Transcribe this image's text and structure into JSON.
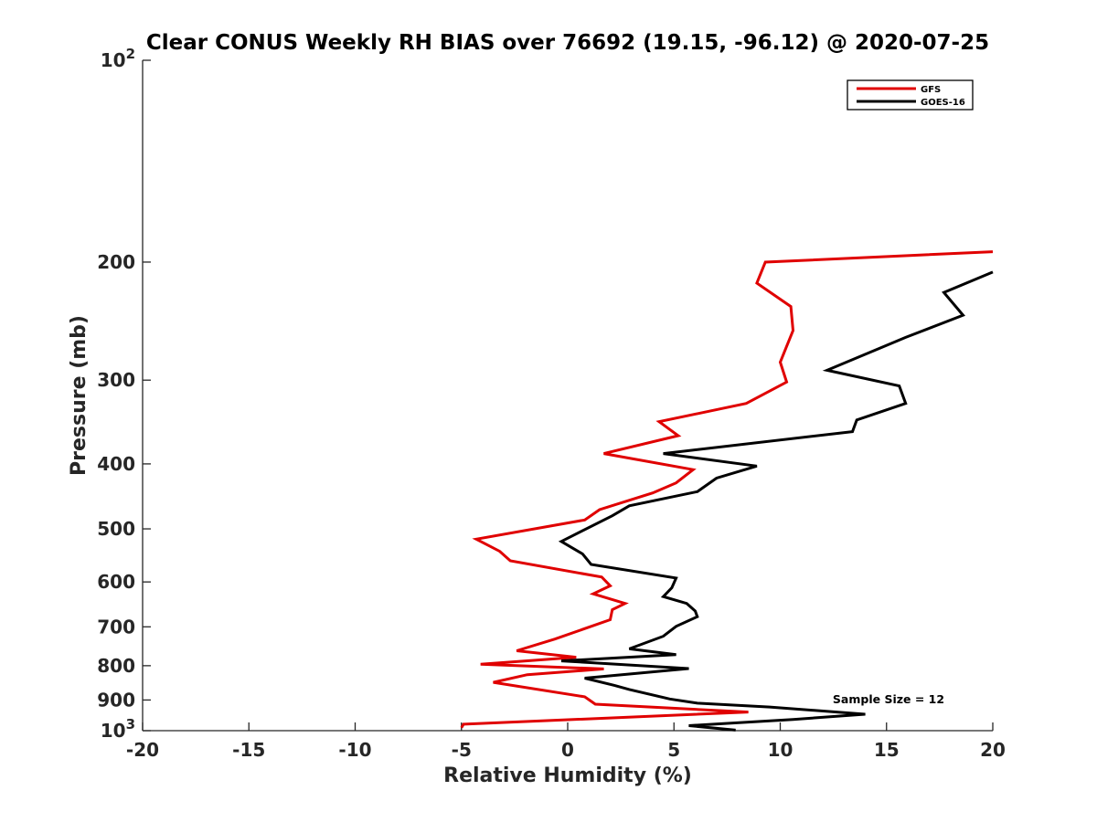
{
  "chart_data": {
    "type": "line",
    "title": "Clear CONUS Weekly RH BIAS over 76692 (19.15, -96.12) @ 2020-07-25",
    "xlabel": "Relative Humidity (%)",
    "ylabel": "Pressure (mb)",
    "xlim": [
      -20,
      20
    ],
    "ylim": [
      100,
      1000
    ],
    "yscale": "log",
    "y_reversed": true,
    "grid": false,
    "legend_position": "top-right",
    "x_ticks": [
      {
        "value": -20,
        "label": "-20"
      },
      {
        "value": -15,
        "label": "-15"
      },
      {
        "value": -10,
        "label": "-10"
      },
      {
        "value": -5,
        "label": "-5"
      },
      {
        "value": 0,
        "label": "0"
      },
      {
        "value": 5,
        "label": "5"
      },
      {
        "value": 10,
        "label": "10"
      },
      {
        "value": 15,
        "label": "15"
      },
      {
        "value": 20,
        "label": "20"
      }
    ],
    "y_ticks": [
      {
        "value": 100,
        "base": "10",
        "exp": "2"
      },
      {
        "value": 200,
        "label": "200"
      },
      {
        "value": 300,
        "label": "300"
      },
      {
        "value": 400,
        "label": "400"
      },
      {
        "value": 500,
        "label": "500"
      },
      {
        "value": 600,
        "label": "600"
      },
      {
        "value": 700,
        "label": "700"
      },
      {
        "value": 800,
        "label": "800"
      },
      {
        "value": 900,
        "label": "900"
      },
      {
        "value": 1000,
        "base": "10",
        "exp": "3"
      }
    ],
    "series": [
      {
        "name": "GFS",
        "color": "#e00000",
        "points": [
          {
            "x": 20,
            "p": 193
          },
          {
            "x": 9.3,
            "p": 200
          },
          {
            "x": 8.9,
            "p": 215
          },
          {
            "x": 10.5,
            "p": 233
          },
          {
            "x": 10.6,
            "p": 253
          },
          {
            "x": 10.0,
            "p": 282
          },
          {
            "x": 10.3,
            "p": 302
          },
          {
            "x": 8.4,
            "p": 325
          },
          {
            "x": 4.3,
            "p": 346
          },
          {
            "x": 5.2,
            "p": 363
          },
          {
            "x": 1.7,
            "p": 386
          },
          {
            "x": 5.9,
            "p": 408
          },
          {
            "x": 5.1,
            "p": 427
          },
          {
            "x": 4.0,
            "p": 442
          },
          {
            "x": 1.5,
            "p": 468
          },
          {
            "x": 0.8,
            "p": 485
          },
          {
            "x": -4.3,
            "p": 518
          },
          {
            "x": -3.2,
            "p": 540
          },
          {
            "x": -2.7,
            "p": 558
          },
          {
            "x": 1.6,
            "p": 590
          },
          {
            "x": 2.0,
            "p": 608
          },
          {
            "x": 1.2,
            "p": 625
          },
          {
            "x": 2.7,
            "p": 646
          },
          {
            "x": 2.1,
            "p": 660
          },
          {
            "x": 2.0,
            "p": 683
          },
          {
            "x": -0.6,
            "p": 730
          },
          {
            "x": -2.4,
            "p": 760
          },
          {
            "x": 0.4,
            "p": 777
          },
          {
            "x": -4.1,
            "p": 796
          },
          {
            "x": 1.7,
            "p": 809
          },
          {
            "x": -1.9,
            "p": 825
          },
          {
            "x": -3.5,
            "p": 847
          },
          {
            "x": 0.8,
            "p": 890
          },
          {
            "x": 1.3,
            "p": 913
          },
          {
            "x": 8.5,
            "p": 938
          },
          {
            "x": -4.9,
            "p": 978
          },
          {
            "x": -5.0,
            "p": 990
          }
        ]
      },
      {
        "name": "GOES-16",
        "color": "#000000",
        "points": [
          {
            "x": 20,
            "p": 207
          },
          {
            "x": 17.7,
            "p": 222
          },
          {
            "x": 18.6,
            "p": 240
          },
          {
            "x": 15.9,
            "p": 259
          },
          {
            "x": 12.2,
            "p": 290
          },
          {
            "x": 15.6,
            "p": 306
          },
          {
            "x": 15.9,
            "p": 325
          },
          {
            "x": 13.6,
            "p": 344
          },
          {
            "x": 13.4,
            "p": 358
          },
          {
            "x": 4.5,
            "p": 386
          },
          {
            "x": 8.9,
            "p": 403
          },
          {
            "x": 7.0,
            "p": 420
          },
          {
            "x": 6.1,
            "p": 440
          },
          {
            "x": 2.9,
            "p": 462
          },
          {
            "x": 2.1,
            "p": 478
          },
          {
            "x": -0.3,
            "p": 522
          },
          {
            "x": 0.7,
            "p": 545
          },
          {
            "x": 1.1,
            "p": 565
          },
          {
            "x": 5.1,
            "p": 592
          },
          {
            "x": 4.9,
            "p": 612
          },
          {
            "x": 4.5,
            "p": 631
          },
          {
            "x": 5.6,
            "p": 646
          },
          {
            "x": 6.0,
            "p": 663
          },
          {
            "x": 6.1,
            "p": 676
          },
          {
            "x": 5.1,
            "p": 699
          },
          {
            "x": 4.5,
            "p": 723
          },
          {
            "x": 2.9,
            "p": 755
          },
          {
            "x": 5.1,
            "p": 770
          },
          {
            "x": -0.3,
            "p": 787
          },
          {
            "x": 5.7,
            "p": 808
          },
          {
            "x": 0.8,
            "p": 835
          },
          {
            "x": 2.2,
            "p": 856
          },
          {
            "x": 2.9,
            "p": 868
          },
          {
            "x": 4.8,
            "p": 897
          },
          {
            "x": 6.1,
            "p": 910
          },
          {
            "x": 9.5,
            "p": 922
          },
          {
            "x": 14.0,
            "p": 945
          },
          {
            "x": 10.6,
            "p": 962
          },
          {
            "x": 5.7,
            "p": 983
          },
          {
            "x": 7.9,
            "p": 998
          }
        ]
      }
    ],
    "annotation": "Sample Size = 12"
  }
}
